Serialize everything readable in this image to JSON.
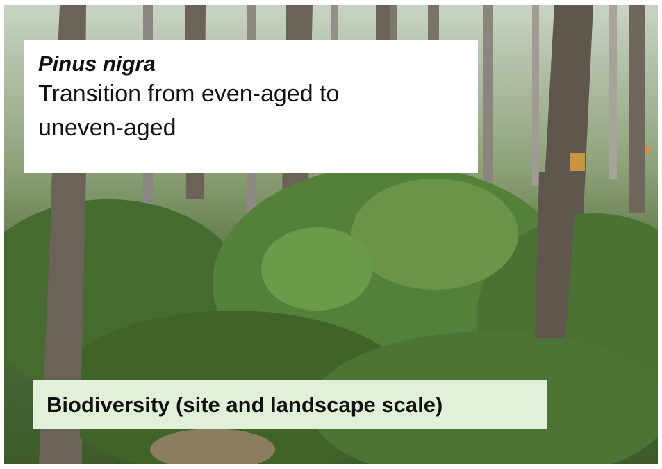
{
  "title_box": {
    "species": "Pinus nigra",
    "description": "Transition from even-aged to uneven-aged"
  },
  "caption": "Biodiversity (site and landscape scale)"
}
